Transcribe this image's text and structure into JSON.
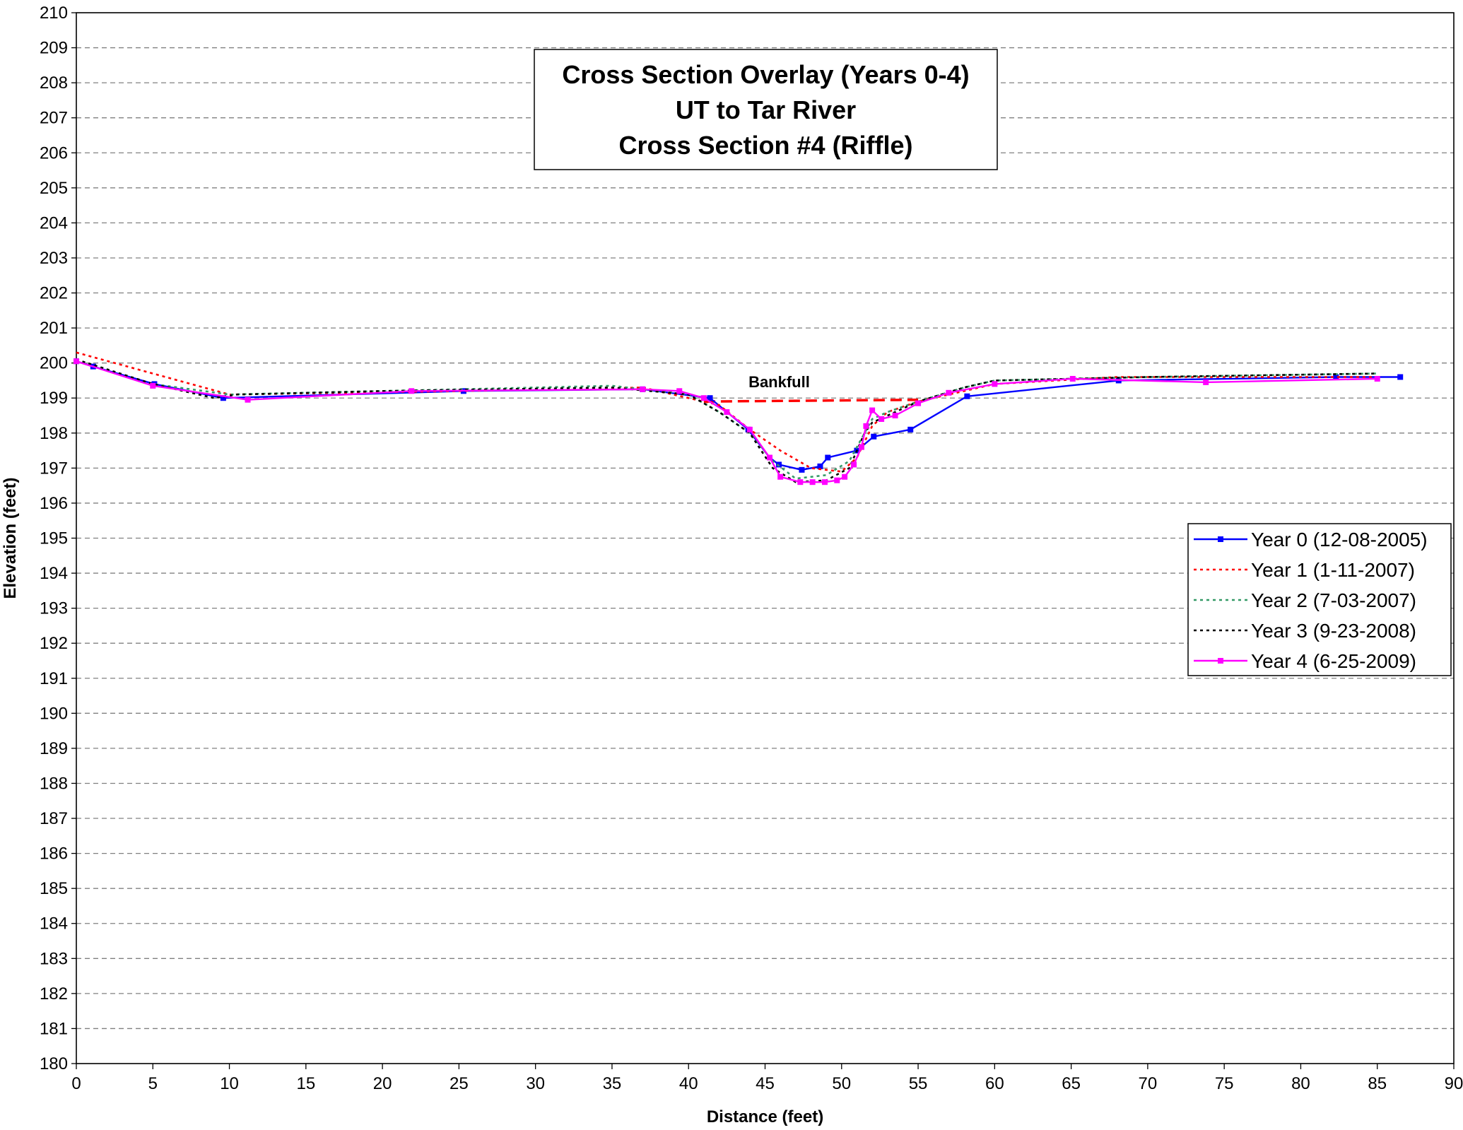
{
  "chart_data": {
    "type": "line",
    "title": [
      "Cross Section Overlay (Years 0-4)",
      "UT to Tar River",
      "Cross Section #4  (Riffle)"
    ],
    "xlabel": "Distance (feet)",
    "ylabel": "Elevation (feet)",
    "xlim": [
      0,
      90
    ],
    "xticks": [
      0,
      5,
      10,
      15,
      20,
      25,
      30,
      35,
      40,
      45,
      50,
      55,
      60,
      65,
      70,
      75,
      80,
      85,
      90
    ],
    "ylim": [
      180,
      210
    ],
    "yticks": [
      180,
      181,
      182,
      183,
      184,
      185,
      186,
      187,
      188,
      189,
      190,
      191,
      192,
      193,
      194,
      195,
      196,
      197,
      198,
      199,
      200,
      201,
      202,
      203,
      204,
      205,
      206,
      207,
      208,
      209,
      210
    ],
    "grid": true,
    "legend": "right",
    "series": [
      {
        "name": "Year 0 (12-08-2005)",
        "color": "#0000ff",
        "dash": false,
        "markers": true,
        "x": [
          0,
          1.1,
          5.1,
          9.6,
          25.3,
          37.0,
          41.4,
          43.9,
          45.3,
          45.9,
          47.4,
          48.6,
          49.1,
          51.0,
          52.1,
          54.5,
          58.2,
          68.1,
          82.3,
          86.5
        ],
        "values": [
          200.05,
          199.9,
          199.4,
          199.0,
          199.2,
          199.25,
          199.0,
          198.1,
          197.3,
          197.1,
          196.95,
          197.05,
          197.3,
          197.5,
          197.9,
          198.1,
          199.05,
          199.5,
          199.6,
          199.6
        ]
      },
      {
        "name": "Year 1 (1-11-2007)",
        "color": "#ff0000",
        "dash": true,
        "markers": false,
        "x": [
          0,
          10,
          25,
          37,
          40,
          42,
          44,
          46,
          48,
          50,
          51,
          52,
          53,
          55,
          58,
          60,
          68,
          85
        ],
        "values": [
          200.3,
          199.1,
          199.2,
          199.3,
          199.0,
          198.8,
          198.1,
          197.5,
          197.0,
          196.9,
          197.3,
          198.2,
          198.6,
          198.9,
          199.2,
          199.4,
          199.6,
          199.6
        ]
      },
      {
        "name": "Year 2 (7-03-2007)",
        "color": "#339966",
        "dash": true,
        "markers": false,
        "x": [
          0,
          5,
          10,
          20,
          35,
          40,
          42,
          44,
          45.5,
          47,
          49,
          50.5,
          51.5,
          52,
          53,
          55,
          58,
          60,
          70,
          85
        ],
        "values": [
          200.1,
          199.4,
          199.1,
          199.2,
          199.35,
          199.1,
          198.6,
          198.0,
          197.2,
          196.7,
          196.8,
          197.2,
          198.0,
          198.4,
          198.6,
          198.9,
          199.3,
          199.5,
          199.6,
          199.7
        ]
      },
      {
        "name": "Year 3 (9-23-2008)",
        "color": "#000000",
        "dash": true,
        "markers": false,
        "x": [
          0,
          5,
          9,
          10.5,
          20,
          35,
          40,
          42,
          44,
          45.5,
          47,
          49,
          50.5,
          51.5,
          52,
          53,
          55,
          58,
          60,
          70,
          85
        ],
        "values": [
          200.1,
          199.4,
          199.0,
          199.1,
          199.2,
          199.3,
          199.1,
          198.6,
          198.0,
          197.0,
          196.6,
          196.65,
          197.0,
          198.0,
          198.3,
          198.5,
          198.9,
          199.3,
          199.5,
          199.6,
          199.7
        ]
      },
      {
        "name": "Year 4 (6-25-2009)",
        "color": "#ff00ff",
        "dash": false,
        "markers": true,
        "x": [
          0,
          5,
          11.2,
          21.9,
          37,
          39.4,
          41,
          42.5,
          44,
          45.3,
          46,
          47.3,
          48.1,
          48.9,
          49.7,
          50.2,
          50.8,
          51.3,
          51.6,
          52,
          52.6,
          53.5,
          55,
          57,
          60,
          65.1,
          73.8,
          85
        ],
        "values": [
          200.05,
          199.35,
          198.95,
          199.2,
          199.25,
          199.2,
          199.0,
          198.6,
          198.1,
          197.3,
          196.75,
          196.6,
          196.6,
          196.6,
          196.65,
          196.75,
          197.1,
          197.6,
          198.2,
          198.65,
          198.4,
          198.5,
          198.85,
          199.15,
          199.4,
          199.55,
          199.45,
          199.55
        ]
      }
    ],
    "bankfull": {
      "label": "Bankfull",
      "color": "#ff0000",
      "x": [
        41,
        55
      ],
      "values": [
        198.9,
        198.95
      ]
    }
  }
}
